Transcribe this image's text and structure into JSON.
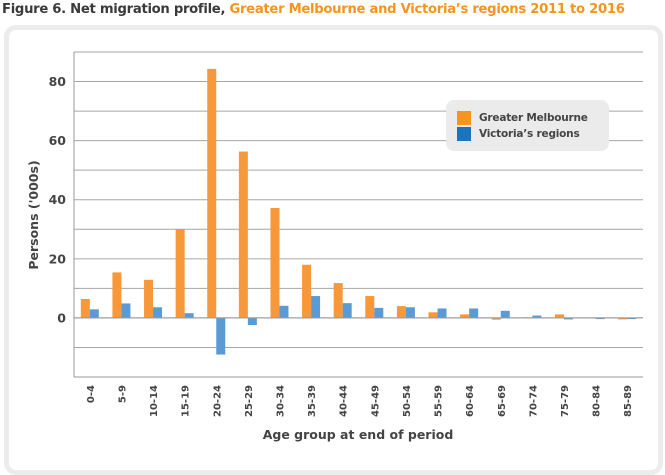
{
  "title": {
    "prefix": "Figure 6. Net migration profile, ",
    "highlight": "Greater Melbourne and Victoria’s regions 2011 to 2016"
  },
  "colors": {
    "greater_melbourne": "#f7993a",
    "victorias_regions": "#5b9bd5",
    "legend_orange": "#f7941d",
    "legend_blue": "#1c75bc",
    "title_accent": "#f7941d"
  },
  "chart_data": {
    "type": "bar",
    "title": "Figure 6. Net migration profile, Greater Melbourne and Victoria’s regions 2011 to 2016",
    "xlabel": "Age group at end of period",
    "ylabel": "Persons ('000s)",
    "ylim": [
      -20,
      90
    ],
    "yticks": [
      0,
      20,
      40,
      60,
      80
    ],
    "grid_step": 10,
    "grid": true,
    "legend_position": "top-right",
    "categories": [
      "0-4",
      "5-9",
      "10-14",
      "15-19",
      "20-24",
      "25-29",
      "30-34",
      "35-39",
      "40-44",
      "45-49",
      "50-54",
      "55-59",
      "60-64",
      "65-69",
      "70-74",
      "75-79",
      "80-84",
      "85-89"
    ],
    "series": [
      {
        "name": "Greater Melbourne",
        "values": [
          6.4,
          15.4,
          12.9,
          30.0,
          84.3,
          56.3,
          37.2,
          18.0,
          11.8,
          7.4,
          4.0,
          1.9,
          1.2,
          -0.6,
          0.2,
          1.2,
          0.1,
          -0.5
        ]
      },
      {
        "name": "Victoria’s regions",
        "values": [
          2.9,
          4.9,
          3.6,
          1.6,
          -12.4,
          -2.4,
          4.1,
          7.4,
          5.0,
          3.4,
          3.6,
          3.2,
          3.2,
          2.4,
          0.8,
          -0.5,
          -0.4,
          -0.4
        ]
      }
    ]
  }
}
